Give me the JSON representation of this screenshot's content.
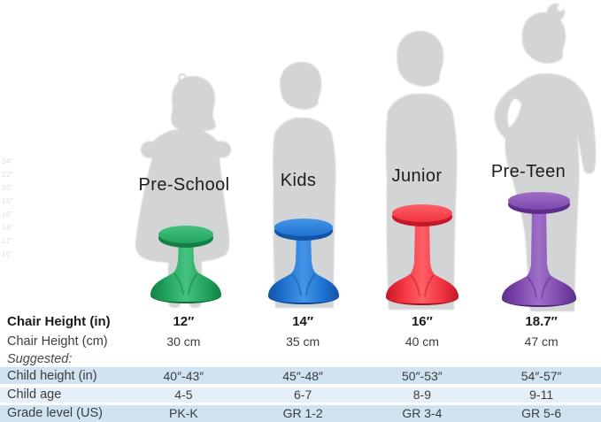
{
  "chart_data": {
    "type": "table",
    "title": "",
    "categories": [
      "Pre-School",
      "Kids",
      "Junior",
      "Pre-Teen"
    ],
    "rows": [
      {
        "label": "Chair Height (in)",
        "values": [
          "12″",
          "14″",
          "16″",
          "18.7″"
        ],
        "style": "bold",
        "shade": "none"
      },
      {
        "label": "Chair Height (cm)",
        "values": [
          "30 cm",
          "35 cm",
          "40 cm",
          "47 cm"
        ],
        "style": "regular",
        "shade": "none"
      },
      {
        "label": "Suggested:",
        "values": [
          "",
          "",
          "",
          ""
        ],
        "style": "italic",
        "shade": "none"
      },
      {
        "label": "Child height (in)",
        "values": [
          "40″-43″",
          "45″-48″",
          "50″-53″",
          "54″-57″"
        ],
        "style": "regular",
        "shade": "dark"
      },
      {
        "label": "Child age",
        "values": [
          "4-5",
          "6-7",
          "8-9",
          "9-11"
        ],
        "style": "regular",
        "shade": "light"
      },
      {
        "label": "Grade level (US)",
        "values": [
          "PK-K",
          "GR 1-2",
          "GR 3-4",
          "GR 5-6"
        ],
        "style": "regular",
        "shade": "dark"
      }
    ],
    "ruler_tick_labels": [
      "24″",
      "22″",
      "20″",
      "18″",
      "16″",
      "14″",
      "12″",
      "10″"
    ],
    "layout": {
      "grid": true,
      "ruler_side": "left",
      "legend": "none"
    }
  },
  "products": [
    {
      "name": "Pre-School",
      "chair_height_in": "12″",
      "colors": {
        "main": "#22a35f",
        "light": "#45c27e",
        "dark": "#128044",
        "darker": "#0e6b39"
      }
    },
    {
      "name": "Kids",
      "chair_height_in": "14″",
      "colors": {
        "main": "#1d72cf",
        "light": "#4495e8",
        "dark": "#1254a6",
        "darker": "#0e4489"
      }
    },
    {
      "name": "Junior",
      "chair_height_in": "16″",
      "colors": {
        "main": "#f03340",
        "light": "#ff6066",
        "dark": "#c3182a",
        "darker": "#a01020"
      }
    },
    {
      "name": "Pre-Teen",
      "chair_height_in": "18.7″",
      "colors": {
        "main": "#7d47ad",
        "light": "#9e6fc7",
        "dark": "#5d2f8b",
        "darker": "#4c2376"
      }
    }
  ],
  "table_shades": {
    "dark": "#cfe3f1",
    "light": "#e4eff8"
  },
  "silhouette_color": "#d2d4d6"
}
